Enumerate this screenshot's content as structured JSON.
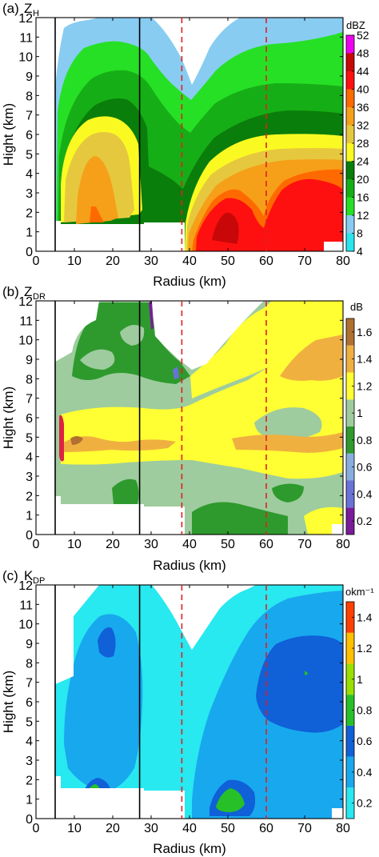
{
  "chart_data": [
    {
      "type": "heatmap",
      "panel_label": "(a)",
      "title_main": "Z",
      "title_sub": "H",
      "xlabel": "Radius (km)",
      "ylabel": "Hight (km)",
      "xlim": [
        0,
        80
      ],
      "ylim": [
        0,
        12
      ],
      "xticks": [
        0,
        10,
        20,
        30,
        40,
        50,
        60,
        70,
        80
      ],
      "yticks": [
        0,
        1,
        2,
        3,
        4,
        5,
        6,
        7,
        8,
        9,
        10,
        11,
        12
      ],
      "colorbar_unit": "dBZ",
      "colorbar_ticks": [
        4,
        8,
        12,
        16,
        20,
        24,
        28,
        32,
        36,
        40,
        44,
        48,
        52
      ],
      "levels": [
        4,
        8,
        12,
        16,
        20,
        24,
        28,
        32,
        36,
        40,
        44,
        48,
        52
      ],
      "colors": [
        "#28e6ec",
        "#88ccf2",
        "#26e026",
        "#16ae16",
        "#0a7e0a",
        "#fafa22",
        "#e6c83e",
        "#f6a01a",
        "#ff6a00",
        "#ff1010",
        "#c80808",
        "#f000f0"
      ],
      "solid_lines_x": [
        5,
        27
      ],
      "dashed_lines_x": [
        38,
        60
      ]
    },
    {
      "type": "heatmap",
      "panel_label": "(b)",
      "title_main": "Z",
      "title_sub": "DR",
      "xlabel": "Radius (km)",
      "ylabel": "Hight (km)",
      "xlim": [
        0,
        80
      ],
      "ylim": [
        0,
        12
      ],
      "xticks": [
        0,
        10,
        20,
        30,
        40,
        50,
        60,
        70,
        80
      ],
      "yticks": [
        0,
        1,
        2,
        3,
        4,
        5,
        6,
        7,
        8,
        9,
        10,
        11,
        12
      ],
      "colorbar_unit": "dB",
      "colorbar_ticks": [
        0.2,
        0.4,
        0.6,
        0.8,
        1.0,
        1.2,
        1.4,
        1.6
      ],
      "levels": [
        0.1,
        0.3,
        0.5,
        0.7,
        0.9,
        1.1,
        1.3,
        1.5,
        1.7
      ],
      "colors": [
        "#7a1c9a",
        "#6a72d8",
        "#88aee0",
        "#2e9a2e",
        "#9ecc9e",
        "#ffff33",
        "#f0b040",
        "#b07030",
        "#dd2244",
        "#e85080"
      ],
      "solid_lines_x": [
        5,
        27
      ],
      "dashed_lines_x": [
        38,
        60
      ]
    },
    {
      "type": "heatmap",
      "panel_label": "(c)",
      "title_main": "K",
      "title_sub": "DP",
      "xlabel": "Radius (km)",
      "ylabel": "Hight (km)",
      "xlim": [
        0,
        80
      ],
      "ylim": [
        0,
        12
      ],
      "xticks": [
        0,
        10,
        20,
        30,
        40,
        50,
        60,
        70,
        80
      ],
      "yticks": [
        0,
        1,
        2,
        3,
        4,
        5,
        6,
        7,
        8,
        9,
        10,
        11,
        12
      ],
      "colorbar_unit": "okm⁻¹",
      "colorbar_ticks": [
        0.2,
        0.4,
        0.6,
        0.8,
        1.0,
        1.2,
        1.4
      ],
      "levels": [
        0.1,
        0.3,
        0.5,
        0.7,
        0.9,
        1.1,
        1.3,
        1.5
      ],
      "colors": [
        "#28e8f0",
        "#18a8ee",
        "#1060d8",
        "#28c028",
        "#98e000",
        "#ffc000",
        "#ff4000",
        "#a00000",
        "#c070e0"
      ],
      "solid_lines_x": [
        5,
        27
      ],
      "dashed_lines_x": [
        38,
        60
      ]
    }
  ]
}
